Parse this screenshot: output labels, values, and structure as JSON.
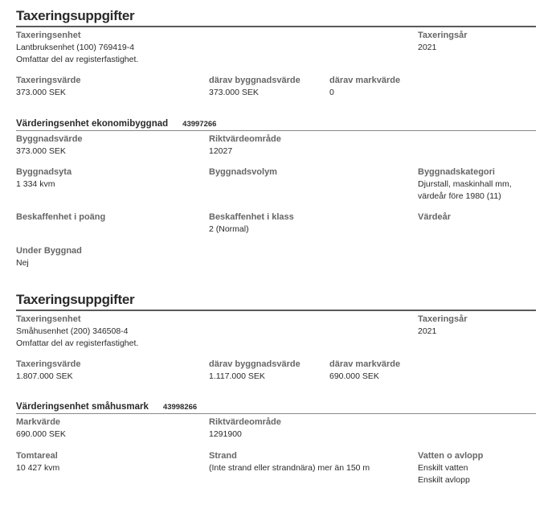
{
  "sections": [
    {
      "title": "Taxeringsuppgifter",
      "topGrid": {
        "cols": [
          "c1",
          "c2",
          "c3",
          "c4"
        ],
        "rows": [
          {
            "fields": [
              {
                "label": "Taxeringsenhet",
                "values": [
                  "Lantbruksenhet (100) 769419-4",
                  "Omfattar del av registerfastighet."
                ]
              },
              null,
              null,
              {
                "label": "Taxeringsår",
                "values": [
                  "2021"
                ]
              }
            ]
          },
          {
            "fields": [
              {
                "label": "Taxeringsvärde",
                "values": [
                  "373.000 SEK"
                ]
              },
              {
                "label": "därav byggnadsvärde",
                "values": [
                  "373.000 SEK"
                ]
              },
              {
                "label": "därav markvärde",
                "values": [
                  "0"
                ]
              },
              null
            ]
          }
        ]
      },
      "subsections": [
        {
          "title": "Värderingsenhet ekonomibyggnad",
          "id": "43997266",
          "grid": {
            "cols": [
              "c-sub1",
              "c-sub2",
              "c-sub3"
            ],
            "rows": [
              {
                "fields": [
                  {
                    "label": "Byggnadsvärde",
                    "values": [
                      "373.000 SEK"
                    ]
                  },
                  {
                    "label": "Riktvärdeområde",
                    "values": [
                      "12027"
                    ]
                  },
                  null
                ]
              },
              {
                "fields": [
                  {
                    "label": "Byggnadsyta",
                    "values": [
                      "1 334 kvm"
                    ]
                  },
                  {
                    "label": "Byggnadsvolym",
                    "values": [
                      ""
                    ]
                  },
                  {
                    "label": "Byggnadskategori",
                    "values": [
                      "Djurstall, maskinhall mm, värdeår före 1980 (11)"
                    ]
                  }
                ]
              },
              {
                "fields": [
                  {
                    "label": "Beskaffenhet i poäng",
                    "values": [
                      ""
                    ]
                  },
                  {
                    "label": "Beskaffenhet i klass",
                    "values": [
                      "2 (Normal)"
                    ]
                  },
                  {
                    "label": "Värdeår",
                    "values": [
                      ""
                    ]
                  }
                ]
              },
              {
                "fields": [
                  {
                    "label": "Under Byggnad",
                    "values": [
                      "Nej"
                    ]
                  },
                  null,
                  null
                ]
              }
            ]
          }
        }
      ]
    },
    {
      "title": "Taxeringsuppgifter",
      "topGrid": {
        "cols": [
          "c1",
          "c2",
          "c3",
          "c4"
        ],
        "rows": [
          {
            "fields": [
              {
                "label": "Taxeringsenhet",
                "values": [
                  "Småhusenhet (200) 346508-4",
                  "Omfattar del av registerfastighet."
                ]
              },
              null,
              null,
              {
                "label": "Taxeringsår",
                "values": [
                  "2021"
                ]
              }
            ]
          },
          {
            "fields": [
              {
                "label": "Taxeringsvärde",
                "values": [
                  "1.807.000 SEK"
                ]
              },
              {
                "label": "därav byggnadsvärde",
                "values": [
                  "1.117.000 SEK"
                ]
              },
              {
                "label": "därav markvärde",
                "values": [
                  "690.000 SEK"
                ]
              },
              null
            ]
          }
        ]
      },
      "subsections": [
        {
          "title": "Värderingsenhet småhusmark",
          "id": "43998266",
          "grid": {
            "cols": [
              "c-sub1",
              "c-sub2",
              "c-sub3"
            ],
            "rows": [
              {
                "fields": [
                  {
                    "label": "Markvärde",
                    "values": [
                      "690.000 SEK"
                    ]
                  },
                  {
                    "label": "Riktvärdeområde",
                    "values": [
                      "1291900"
                    ]
                  },
                  null
                ]
              },
              {
                "fields": [
                  {
                    "label": "Tomtareal",
                    "values": [
                      "10 427 kvm"
                    ]
                  },
                  {
                    "label": "Strand",
                    "values": [
                      "(Inte strand eller strandnära) mer än 150 m"
                    ]
                  },
                  {
                    "label": "Vatten o avlopp",
                    "values": [
                      "Enskilt vatten",
                      "Enskilt avlopp"
                    ]
                  }
                ]
              }
            ]
          }
        }
      ]
    }
  ]
}
